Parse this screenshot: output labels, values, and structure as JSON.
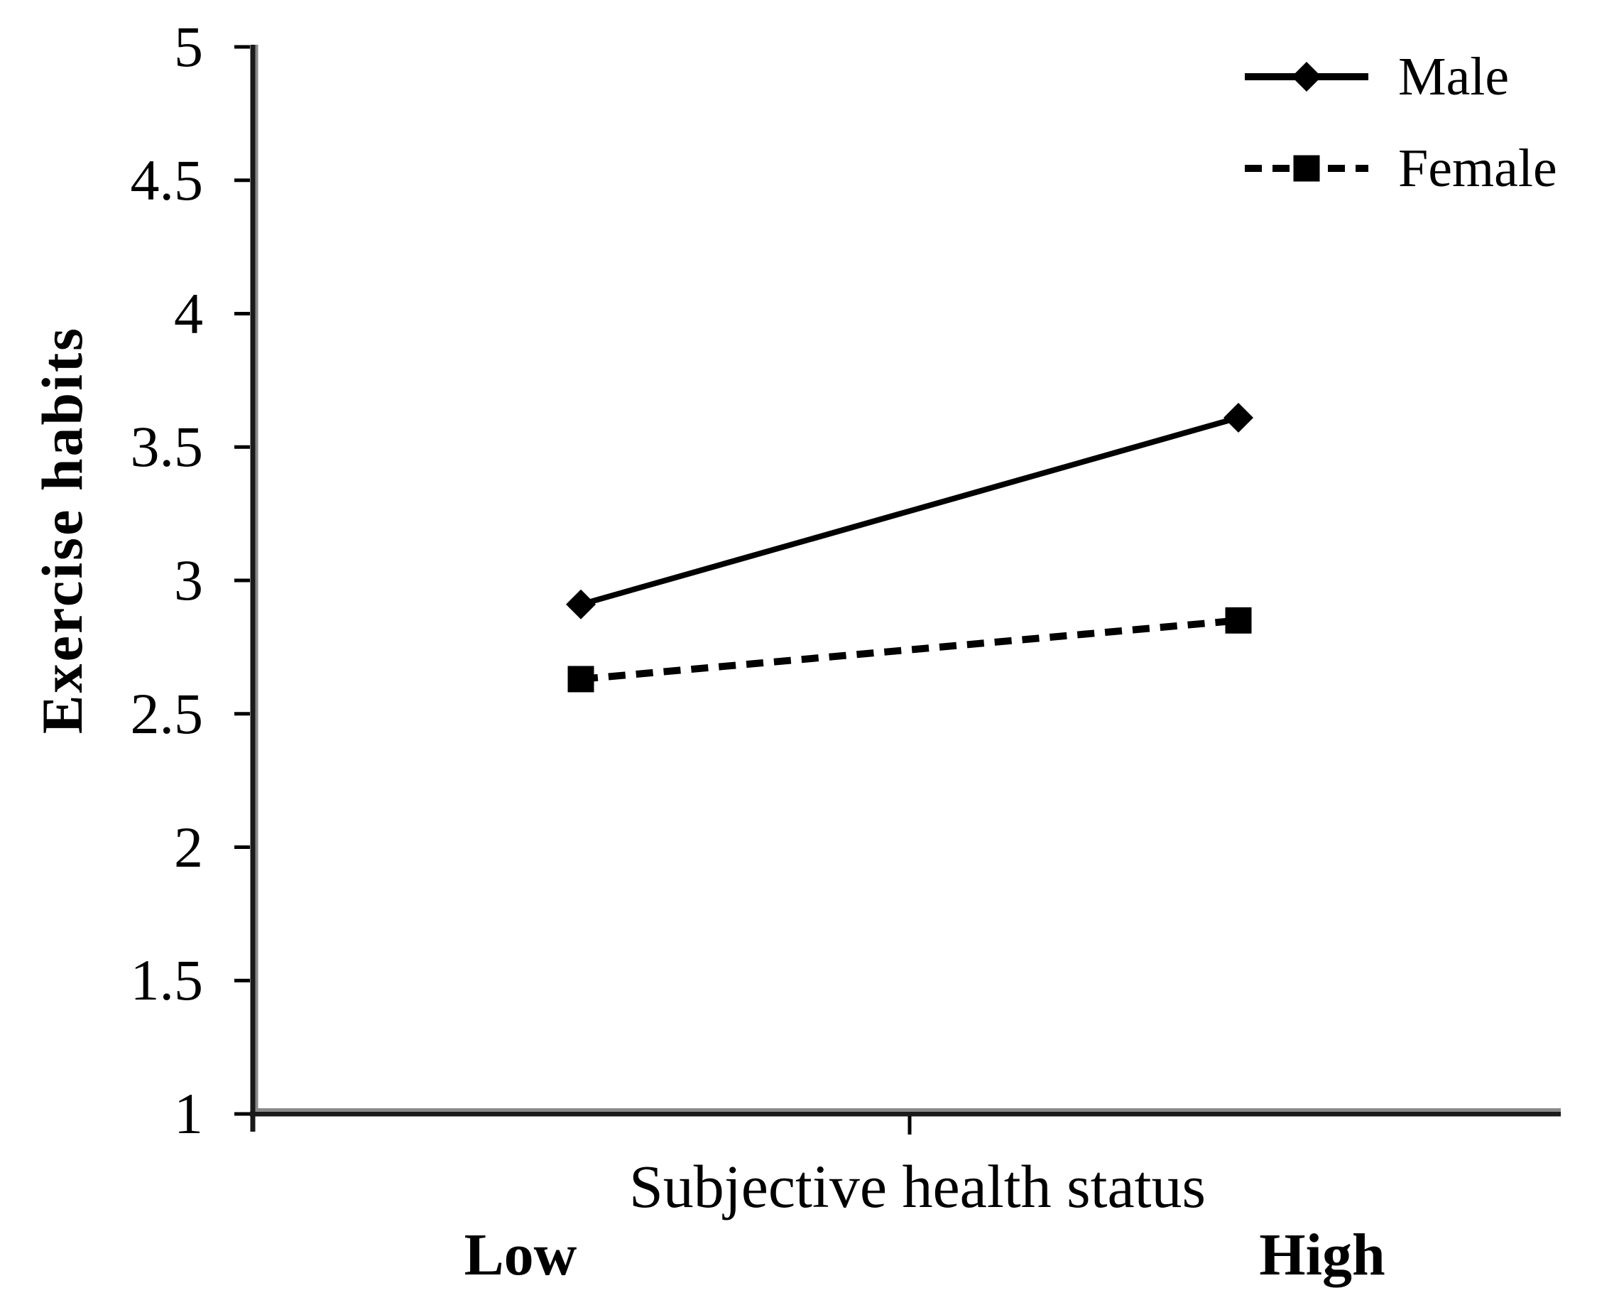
{
  "chart_data": {
    "type": "line",
    "title": "",
    "xlabel": "Subjective health status",
    "ylabel": "Exercise habits",
    "categories": [
      "Low",
      "High"
    ],
    "series": [
      {
        "name": "Male",
        "values": [
          2.91,
          3.61
        ],
        "line_style": "solid",
        "marker": "diamond"
      },
      {
        "name": "Female",
        "values": [
          2.63,
          2.85
        ],
        "line_style": "dashed",
        "marker": "square"
      }
    ],
    "ylim": [
      1,
      5
    ],
    "yticks": [
      {
        "value": 5,
        "label": "5"
      },
      {
        "value": 4.5,
        "label": "4.5"
      },
      {
        "value": 4,
        "label": "4"
      },
      {
        "value": 3.5,
        "label": "3.5"
      },
      {
        "value": 3,
        "label": "3"
      },
      {
        "value": 2.5,
        "label": "2.5"
      },
      {
        "value": 2,
        "label": "2"
      },
      {
        "value": 1.5,
        "label": "1.5"
      },
      {
        "value": 1,
        "label": "1"
      }
    ],
    "grid": false,
    "legend_position": "top-right",
    "colors": {
      "series": "#000000",
      "text": "#000000",
      "axis": "#1a1a1a",
      "axis_shadow": "#8a8a8a",
      "background": "#ffffff"
    }
  }
}
